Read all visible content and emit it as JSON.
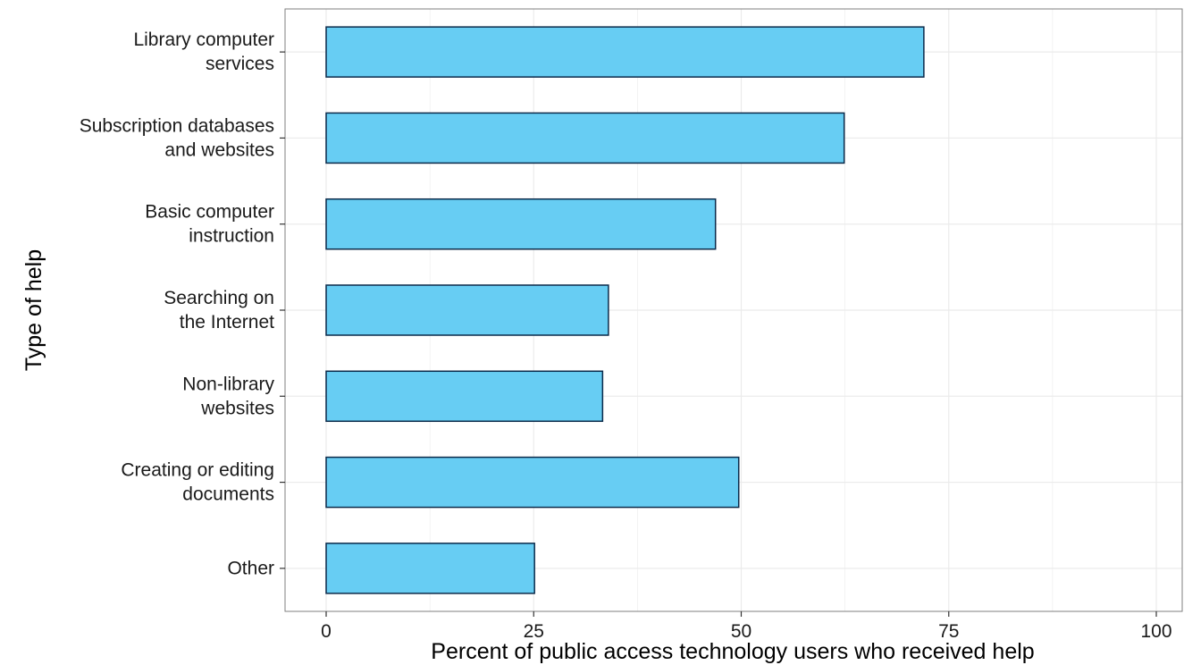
{
  "chart_data": {
    "type": "bar",
    "orientation": "horizontal",
    "categories": [
      [
        "Library computer",
        "services"
      ],
      [
        "Subscription databases",
        "and websites"
      ],
      [
        "Basic computer",
        "instruction"
      ],
      [
        "Searching on",
        "the Internet"
      ],
      [
        "Non-library",
        "websites"
      ],
      [
        "Creating or editing",
        "documents"
      ],
      [
        "Other"
      ]
    ],
    "values": [
      72,
      62.4,
      46.9,
      34,
      33.3,
      49.7,
      25.1
    ],
    "xlabel": "Percent of public access technology users who received help",
    "ylabel": "Type of help",
    "xlim": [
      0,
      100
    ],
    "xticks": [
      0,
      25,
      50,
      75,
      100
    ],
    "grid": true,
    "colors": {
      "bar_fill": "#67cdf3",
      "bar_stroke": "#0b2a4a",
      "grid": "#ebebeb",
      "panel_border": "#7f7f7f"
    }
  }
}
